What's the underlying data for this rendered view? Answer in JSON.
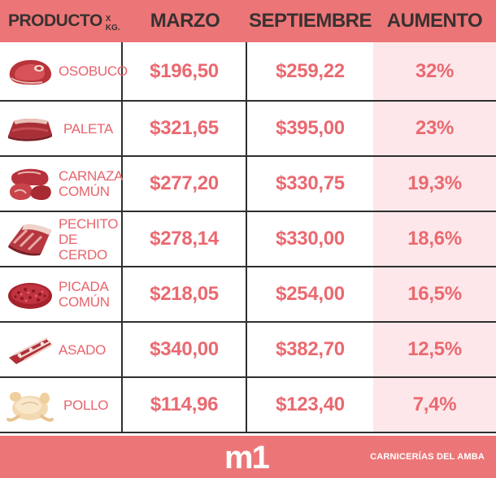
{
  "header": {
    "producto": "PRODUCTO",
    "unit": "X KG.",
    "marzo": "MARZO",
    "septiembre": "SEPTIEMBRE",
    "aumento": "AUMENTO"
  },
  "rows": [
    {
      "name_l1": "OSOBUCO",
      "name_l2": "",
      "marzo": "$196,50",
      "septiembre": "$259,22",
      "aumento": "32%",
      "icon": "osobuco-meat-icon"
    },
    {
      "name_l1": "PALETA",
      "name_l2": "",
      "marzo": "$321,65",
      "septiembre": "$395,00",
      "aumento": "23%",
      "icon": "paleta-meat-icon"
    },
    {
      "name_l1": "CARNAZA",
      "name_l2": "COMÚN",
      "marzo": "$277,20",
      "septiembre": "$330,75",
      "aumento": "19,3%",
      "icon": "carnaza-meat-icon"
    },
    {
      "name_l1": "PECHITO",
      "name_l2": "DE CERDO",
      "marzo": "$278,14",
      "septiembre": "$330,00",
      "aumento": "18,6%",
      "icon": "pechito-meat-icon"
    },
    {
      "name_l1": "PICADA",
      "name_l2": "COMÚN",
      "marzo": "$218,05",
      "septiembre": "$254,00",
      "aumento": "16,5%",
      "icon": "picada-meat-icon"
    },
    {
      "name_l1": "ASADO",
      "name_l2": "",
      "marzo": "$340,00",
      "septiembre": "$382,70",
      "aumento": "12,5%",
      "icon": "asado-meat-icon"
    },
    {
      "name_l1": "POLLO",
      "name_l2": "",
      "marzo": "$114,96",
      "septiembre": "$123,40",
      "aumento": "7,4%",
      "icon": "pollo-chicken-icon"
    }
  ],
  "footer": {
    "logo": "m1",
    "credit": "CARNICERÍAS DEL AMBA"
  },
  "colors": {
    "header_bg": "#ec7677",
    "price_text": "#ea6970",
    "increase_col_bg": "#fde7ea",
    "header_text": "#3a3131"
  }
}
